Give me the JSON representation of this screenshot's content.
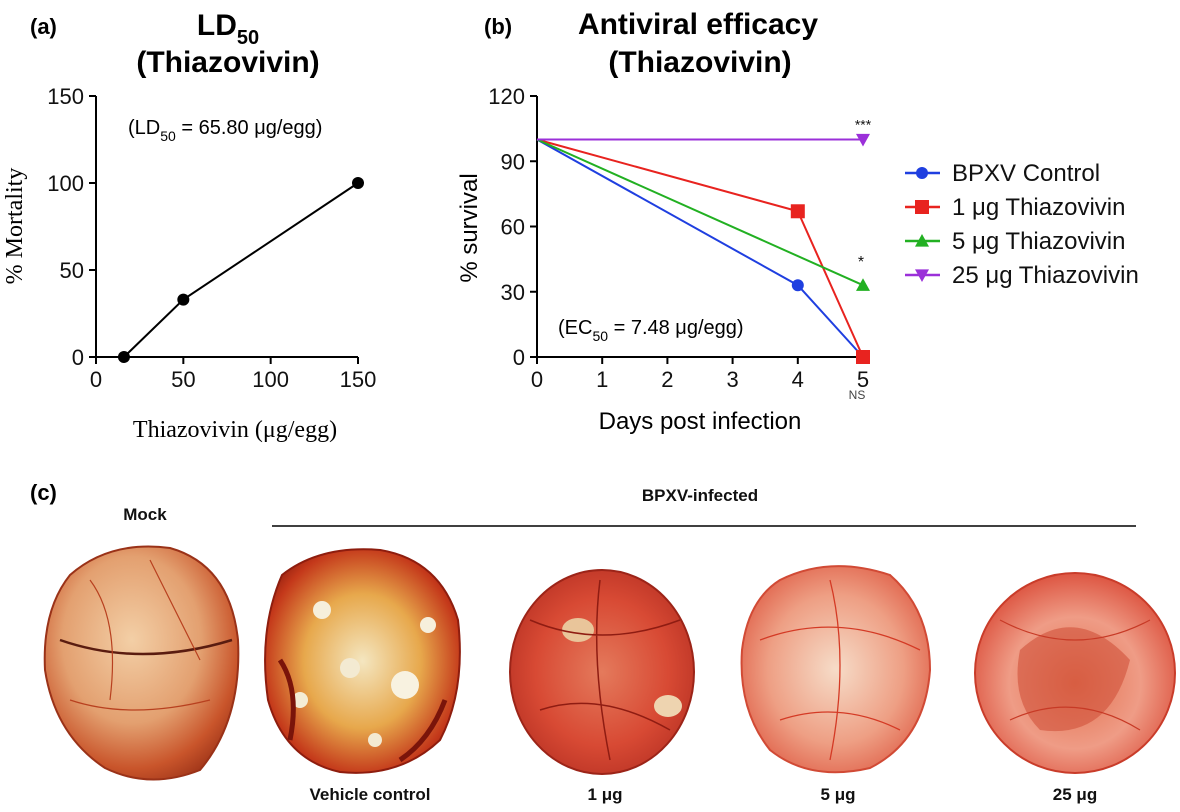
{
  "panels": {
    "a": {
      "label": "(a)"
    },
    "b": {
      "label": "(b)"
    },
    "c": {
      "label": "(c)"
    }
  },
  "chart_data": [
    {
      "type": "line",
      "title_main": "LD",
      "title_sub": "50",
      "title_line2": "(Thiazovivin)",
      "annotation_prefix": "(LD",
      "annotation_sub": "50",
      "annotation_suffix": " = 65.80 μg/egg)",
      "xlabel": "Thiazovivin (μg/egg)",
      "ylabel": "% Mortality",
      "xlim": [
        0,
        150
      ],
      "ylim": [
        0,
        150
      ],
      "xticks": [
        0,
        50,
        100,
        150
      ],
      "yticks": [
        0,
        50,
        100,
        150
      ],
      "series": [
        {
          "name": "Mortality",
          "x": [
            16,
            50,
            150
          ],
          "y": [
            0,
            33,
            100
          ],
          "color": "#000000",
          "marker": "circle"
        }
      ]
    },
    {
      "type": "line",
      "title_line1": "Antiviral efficacy",
      "title_line2": "(Thiazovivin)",
      "annotation_prefix": "(EC",
      "annotation_sub": "50",
      "annotation_suffix": " = 7.48 μg/egg)",
      "xlabel": "Days post infection",
      "ylabel": "% survival",
      "xlim": [
        0,
        5
      ],
      "ylim": [
        0,
        120
      ],
      "xticks": [
        0,
        1,
        2,
        3,
        4,
        5
      ],
      "yticks": [
        0,
        30,
        60,
        90,
        120
      ],
      "series": [
        {
          "name": "BPXV Control",
          "x": [
            0,
            4,
            5
          ],
          "y": [
            100,
            33,
            0
          ],
          "color": "#1f3fe0",
          "marker": "circle"
        },
        {
          "name": "1 μg Thiazovivin",
          "x": [
            0,
            4,
            5
          ],
          "y": [
            100,
            67,
            0
          ],
          "color": "#e8231f",
          "marker": "square"
        },
        {
          "name": "5 μg Thiazovivin",
          "x": [
            0,
            5
          ],
          "y": [
            100,
            33
          ],
          "color": "#22b022",
          "marker": "triangle-up"
        },
        {
          "name": "25 μg Thiazovivin",
          "x": [
            0,
            5
          ],
          "y": [
            100,
            100
          ],
          "color": "#9b30d9",
          "marker": "triangle-down"
        }
      ],
      "significance": [
        {
          "text": "***",
          "x": 5,
          "y": 100
        },
        {
          "text": "*",
          "x": 5,
          "y": 33
        },
        {
          "text": "NS",
          "x": 5,
          "y": 0
        }
      ]
    }
  ],
  "photos": {
    "group_label": "BPXV-infected",
    "items": [
      {
        "label": "Mock",
        "style": "mock"
      },
      {
        "label": "Vehicle control",
        "style": "vehicle"
      },
      {
        "label": "1 μg",
        "style": "low"
      },
      {
        "label": "5 μg",
        "style": "mid"
      },
      {
        "label": "25 μg",
        "style": "high"
      }
    ]
  }
}
